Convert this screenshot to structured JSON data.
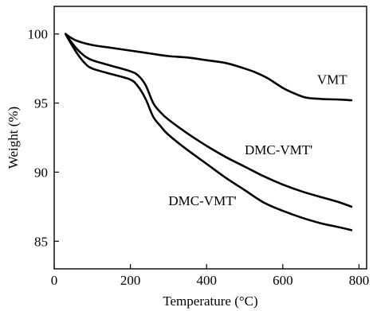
{
  "chart_data": {
    "type": "line",
    "xlabel": "Temperature (°C)",
    "ylabel": "Weight (%)",
    "xlim": [
      0,
      820
    ],
    "ylim": [
      83,
      102
    ],
    "xticks": [
      0,
      200,
      400,
      600,
      800
    ],
    "yticks": [
      85,
      90,
      95,
      100
    ],
    "series": [
      {
        "name": "VMT",
        "x": [
          30,
          40,
          60,
          100,
          150,
          200,
          250,
          300,
          350,
          400,
          450,
          500,
          530,
          560,
          600,
          630,
          660,
          700,
          750,
          780
        ],
        "y": [
          100,
          99.8,
          99.5,
          99.2,
          99.0,
          98.8,
          98.6,
          98.4,
          98.3,
          98.1,
          97.9,
          97.5,
          97.2,
          96.8,
          96.1,
          95.7,
          95.4,
          95.3,
          95.25,
          95.2
        ]
      },
      {
        "name": "DMC-VMT'",
        "x": [
          30,
          40,
          60,
          80,
          100,
          150,
          200,
          220,
          240,
          260,
          280,
          300,
          350,
          400,
          450,
          500,
          550,
          600,
          650,
          700,
          750,
          780
        ],
        "y": [
          100,
          99.6,
          98.9,
          98.4,
          98.1,
          97.7,
          97.3,
          97.0,
          96.3,
          95.0,
          94.3,
          93.8,
          92.8,
          91.9,
          91.1,
          90.4,
          89.7,
          89.1,
          88.6,
          88.2,
          87.8,
          87.5
        ]
      },
      {
        "name": "DMC-VMT'",
        "x": [
          30,
          40,
          60,
          80,
          100,
          150,
          200,
          220,
          240,
          260,
          280,
          300,
          350,
          400,
          450,
          500,
          550,
          600,
          650,
          700,
          750,
          780
        ],
        "y": [
          100,
          99.5,
          98.6,
          97.9,
          97.5,
          97.1,
          96.7,
          96.2,
          95.3,
          94.0,
          93.3,
          92.7,
          91.6,
          90.6,
          89.6,
          88.7,
          87.8,
          87.2,
          86.7,
          86.3,
          86.0,
          85.8
        ]
      }
    ],
    "annotations": [
      {
        "text": "VMT",
        "series": 0,
        "at_x": 690,
        "at_y": 96.4
      },
      {
        "text": "DMC-VMT'",
        "series": 1,
        "at_x": 500,
        "at_y": 91.3
      },
      {
        "text": "DMC-VMT'",
        "series": 2,
        "at_x": 300,
        "at_y": 87.6
      }
    ],
    "grid": false,
    "legend": "none"
  }
}
